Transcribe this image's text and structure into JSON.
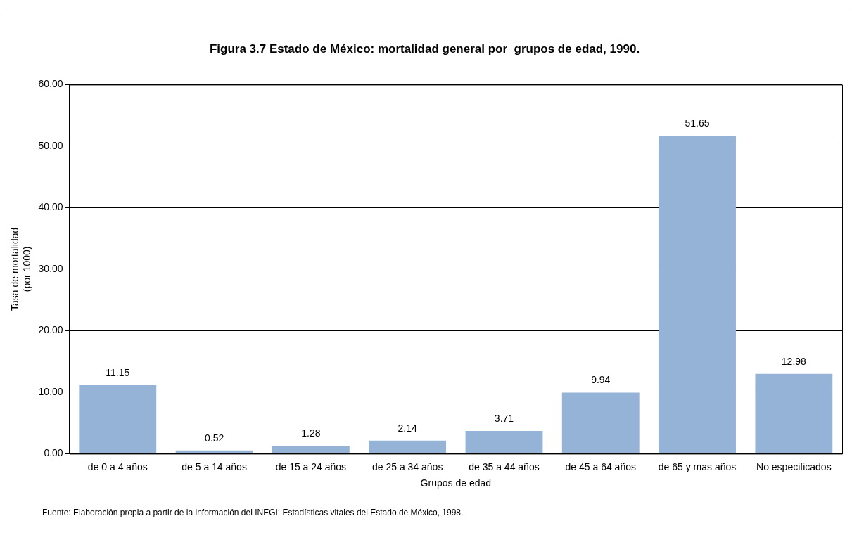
{
  "chart_data": {
    "type": "bar",
    "title": "Figura 3.7 Estado de México: mortalidad general por  grupos de edad, 1990.",
    "xlabel": "Grupos de edad",
    "ylabel": "Tasa de mortalidad\n(por 1000)",
    "categories": [
      "de 0 a 4 años",
      "de 5 a 14 años",
      "de 15 a 24 años",
      "de 25 a 34 años",
      "de 35 a 44 años",
      "de 45 a 64 años",
      "de 65 y mas años",
      "No especificados"
    ],
    "values": [
      11.15,
      0.52,
      1.28,
      2.14,
      3.71,
      9.94,
      51.65,
      12.98
    ],
    "color": "#95b3d7",
    "ylim": [
      0,
      60
    ],
    "yticks": [
      {
        "value": 0,
        "label": "0.00"
      },
      {
        "value": 10,
        "label": "10.00"
      },
      {
        "value": 20,
        "label": "20.00"
      },
      {
        "value": 30,
        "label": "30.00"
      },
      {
        "value": 40,
        "label": "40.00"
      },
      {
        "value": 50,
        "label": "50.00"
      },
      {
        "value": 60,
        "label": "60.00"
      }
    ],
    "grid": "y",
    "legend": false,
    "data_labels": true,
    "annotations": [
      "Fuente: Elaboración propia a partir de la información del INEGI; Estadísticas vitales del  Estado de México, 1998."
    ]
  }
}
